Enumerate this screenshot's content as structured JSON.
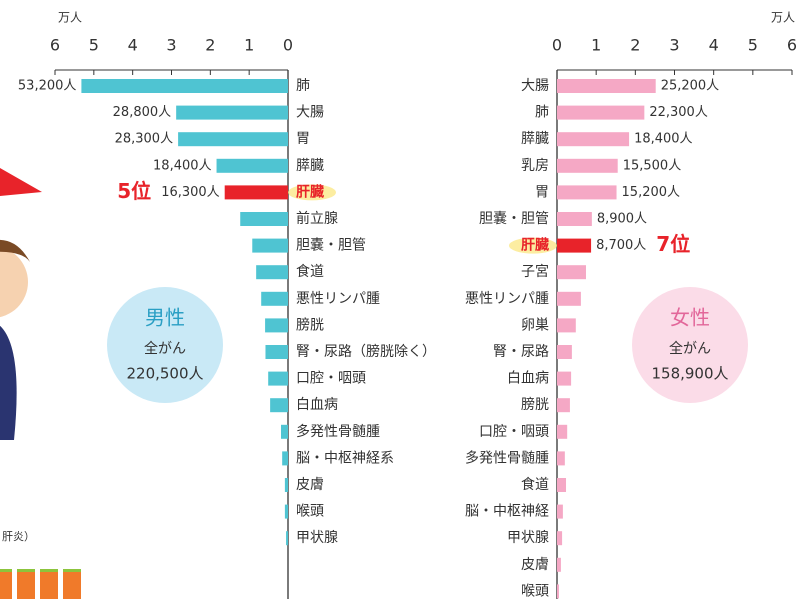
{
  "chart_data": [
    {
      "type": "bar",
      "orientation": "horizontal",
      "title": "男性",
      "subtitle": "全がん",
      "total": "220,500人",
      "unit": "万人",
      "xlim": [
        6,
        0
      ],
      "xticks": [
        6,
        5,
        4,
        3,
        2,
        1,
        0
      ],
      "color": "#4fc4d2",
      "circle_color": "#c9e9f6",
      "title_color": "#2a9fc4",
      "categories": [
        "肺",
        "大腸",
        "胃",
        "膵臓",
        "肝臓",
        "前立腺",
        "胆嚢・胆管",
        "食道",
        "悪性リンパ腫",
        "膀胱",
        "腎・尿路（膀胱除く）",
        "口腔・咽頭",
        "白血病",
        "多発性骨髄腫",
        "脳・中枢神経系",
        "皮膚",
        "喉頭",
        "甲状腺"
      ],
      "values": [
        5.32,
        2.88,
        2.83,
        1.84,
        1.63,
        1.23,
        0.92,
        0.82,
        0.69,
        0.59,
        0.58,
        0.51,
        0.46,
        0.18,
        0.15,
        0.08,
        0.08,
        0.05
      ],
      "value_labels": [
        "53,200人",
        "28,800人",
        "28,300人",
        "18,400人",
        "16,300人",
        null,
        null,
        null,
        null,
        null,
        null,
        null,
        null,
        null,
        null,
        null,
        null,
        null
      ],
      "highlight": {
        "category": "肝臓",
        "label": "5位",
        "color": "#e8232a"
      }
    },
    {
      "type": "bar",
      "orientation": "horizontal",
      "title": "女性",
      "subtitle": "全がん",
      "total": "158,900人",
      "unit": "万人",
      "xlim": [
        0,
        6
      ],
      "xticks": [
        0,
        1,
        2,
        3,
        4,
        5,
        6
      ],
      "color": "#f5a8c5",
      "circle_color": "#fbdce8",
      "title_color": "#e2679a",
      "categories": [
        "大腸",
        "肺",
        "膵臓",
        "乳房",
        "胃",
        "胆嚢・胆管",
        "肝臓",
        "子宮",
        "悪性リンパ腫",
        "卵巣",
        "腎・尿路",
        "白血病",
        "膀胱",
        "口腔・咽頭",
        "多発性骨髄腫",
        "食道",
        "脳・中枢神経",
        "甲状腺",
        "皮膚",
        "喉頭"
      ],
      "values": [
        2.52,
        2.23,
        1.84,
        1.55,
        1.52,
        0.89,
        0.87,
        0.74,
        0.61,
        0.48,
        0.38,
        0.36,
        0.33,
        0.26,
        0.2,
        0.23,
        0.15,
        0.13,
        0.1,
        0.05
      ],
      "value_labels": [
        "25,200人",
        "22,300人",
        "18,400人",
        "15,500人",
        "15,200人",
        "8,900人",
        "8,700人",
        null,
        null,
        null,
        null,
        null,
        null,
        null,
        null,
        null,
        null,
        null,
        null,
        null
      ],
      "highlight": {
        "category": "肝臓",
        "label": "7位",
        "color": "#e8232a"
      }
    }
  ],
  "illustration": {
    "caption": "肝炎）"
  }
}
